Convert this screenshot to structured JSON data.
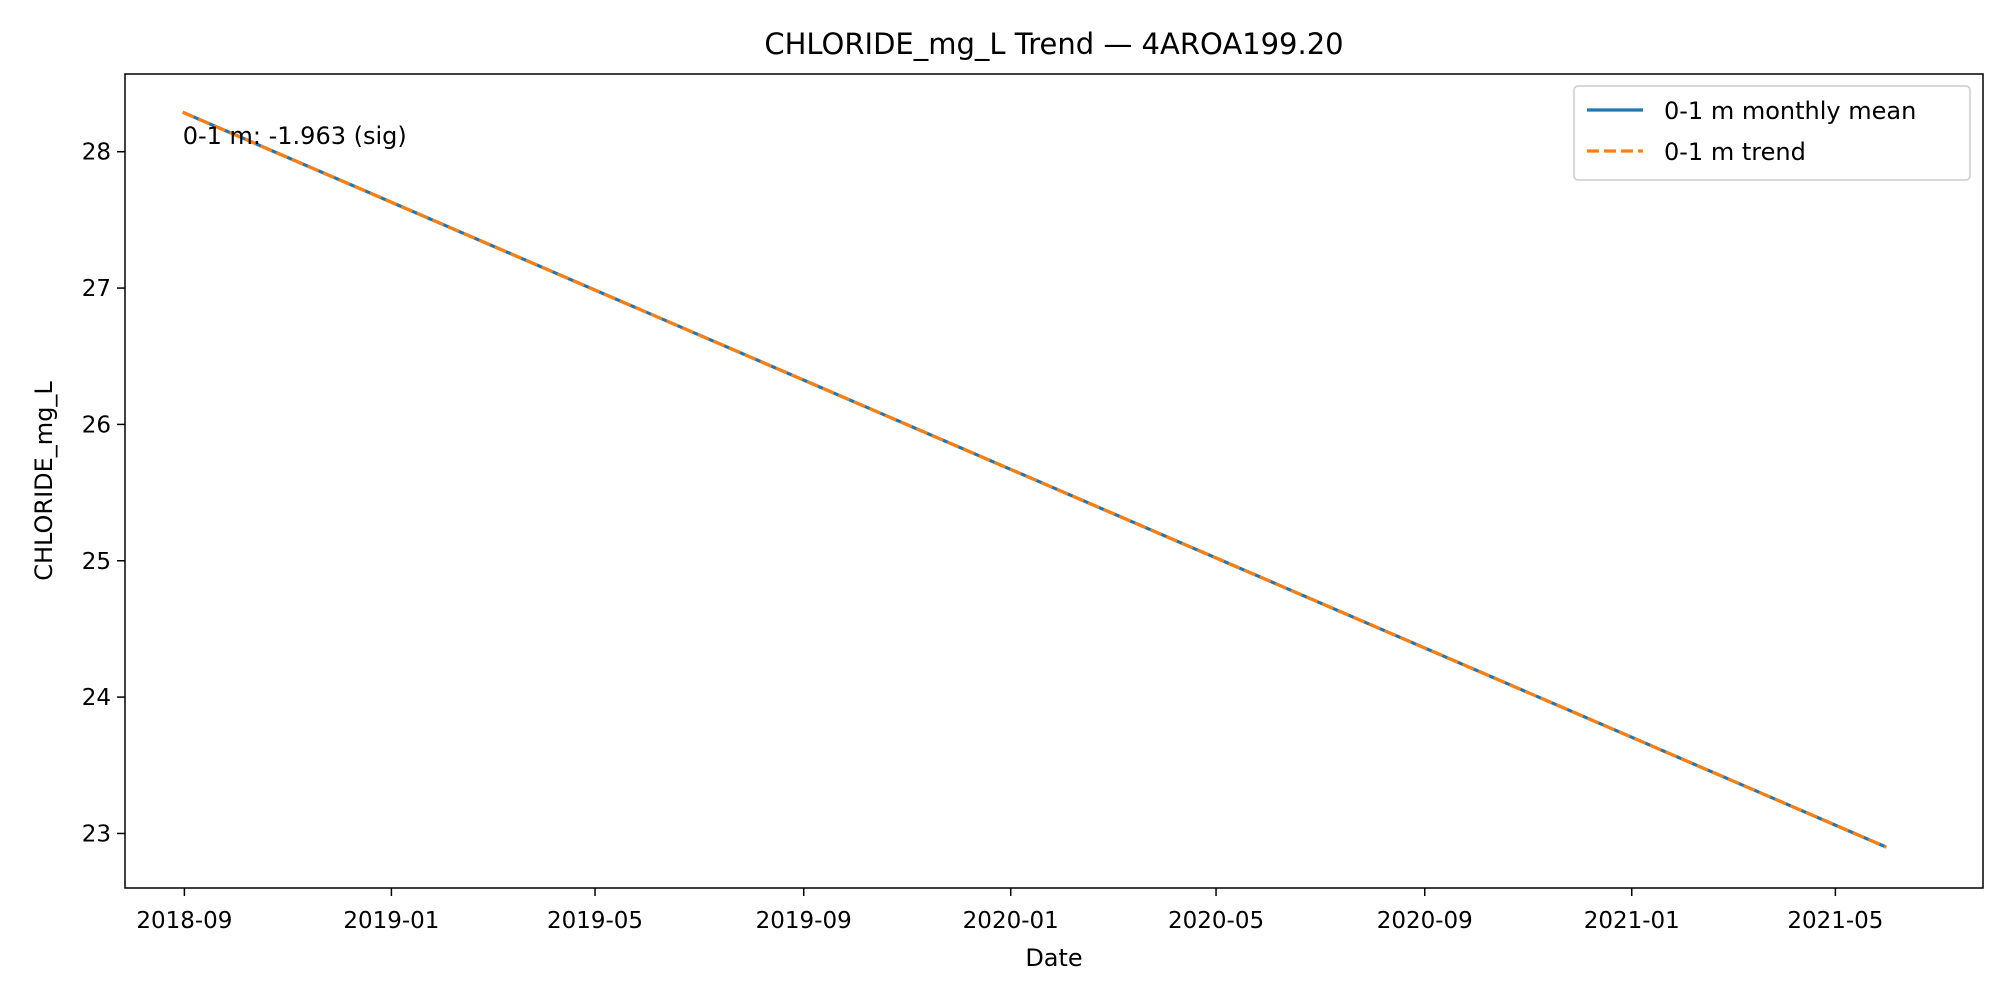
{
  "chart_data": {
    "type": "line",
    "title": "CHLORIDE_mg_L Trend — 4AROA199.20",
    "xlabel": "Date",
    "ylabel": "CHLORIDE_mg_L",
    "x_ticks": [
      "2018-09",
      "2019-01",
      "2019-05",
      "2019-09",
      "2020-01",
      "2020-05",
      "2020-09",
      "2021-01",
      "2021-05"
    ],
    "y_ticks": [
      23,
      24,
      25,
      26,
      27,
      28
    ],
    "xlim": [
      "2018-07-28",
      "2021-07-27"
    ],
    "ylim": [
      22.6,
      28.57
    ],
    "grid": false,
    "legend_position": "top-right",
    "series": [
      {
        "name": "0-1 m monthly mean",
        "color": "#1f77b4",
        "style": "solid",
        "x": [
          "2018-08-31",
          "2021-05-31"
        ],
        "y": [
          28.29,
          22.9
        ]
      },
      {
        "name": "0-1 m trend",
        "color": "#ff7f0e",
        "style": "dashed",
        "x": [
          "2018-08-31",
          "2021-05-31"
        ],
        "y": [
          28.29,
          22.9
        ]
      }
    ],
    "annotations": [
      {
        "text": "0-1 m: -1.963 (sig)",
        "x": "2018-08-31",
        "y": 28.1
      }
    ]
  }
}
